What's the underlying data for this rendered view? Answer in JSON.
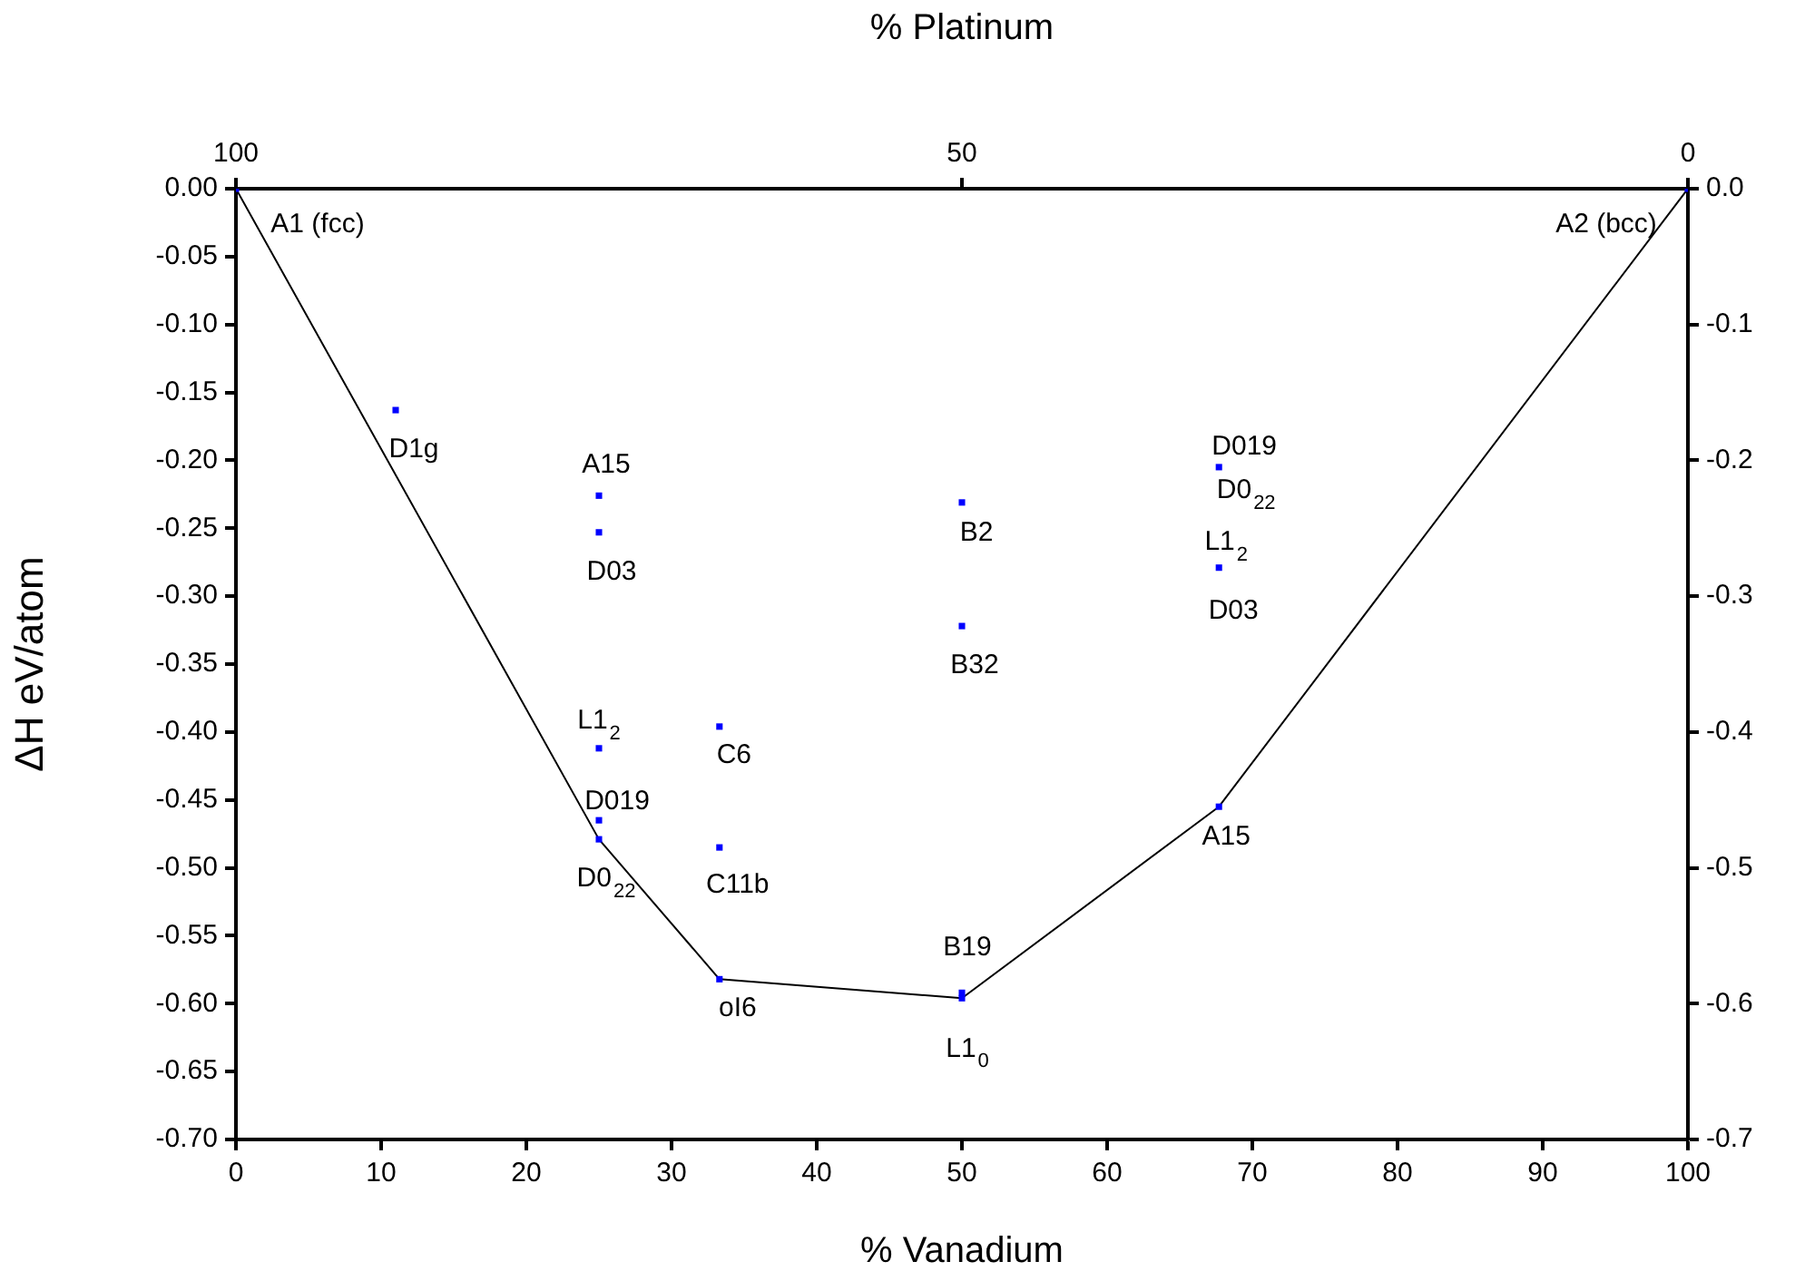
{
  "chart_data": {
    "type": "scatter",
    "xlabel": "% Vanadium",
    "ylabel": "ΔH eV/atom",
    "x2label": "% Platinum",
    "xlim": [
      0,
      100
    ],
    "xticks": [
      0,
      10,
      20,
      30,
      40,
      50,
      60,
      70,
      80,
      90,
      100
    ],
    "x2lim": [
      100,
      0
    ],
    "x2ticks": [
      100,
      50,
      0
    ],
    "ylim": [
      -0.7,
      0
    ],
    "yticks": [
      {
        "value": 0,
        "label": "0.00"
      },
      {
        "value": -0.05,
        "label": "-0.05"
      },
      {
        "value": -0.1,
        "label": "-0.10"
      },
      {
        "value": -0.15,
        "label": "-0.15"
      },
      {
        "value": -0.2,
        "label": "-0.20"
      },
      {
        "value": -0.25,
        "label": "-0.25"
      },
      {
        "value": -0.3,
        "label": "-0.30"
      },
      {
        "value": -0.35,
        "label": "-0.35"
      },
      {
        "value": -0.4,
        "label": "-0.40"
      },
      {
        "value": -0.45,
        "label": "-0.45"
      },
      {
        "value": -0.5,
        "label": "-0.50"
      },
      {
        "value": -0.55,
        "label": "-0.55"
      },
      {
        "value": -0.6,
        "label": "-0.60"
      },
      {
        "value": -0.65,
        "label": "-0.65"
      },
      {
        "value": -0.7,
        "label": "-0.70"
      }
    ],
    "y2lim": [
      -0.7,
      0
    ],
    "y2ticks": [
      {
        "value": 0,
        "label": "0.0"
      },
      -0.1,
      -0.2,
      -0.3,
      -0.4,
      -0.5,
      -0.6,
      -0.7
    ],
    "grid": false,
    "legend": false,
    "marker": "square",
    "series": [
      {
        "type": "scatter",
        "color": "#0000ff",
        "x": [
          0,
          11,
          25,
          25,
          25,
          25,
          25,
          33.3,
          33.3,
          33.3,
          50,
          50,
          50,
          50,
          67.7,
          67.7,
          67.7,
          100
        ],
        "values": [
          0,
          -0.163,
          -0.226,
          -0.253,
          -0.412,
          -0.465,
          -0.479,
          -0.396,
          -0.485,
          -0.582,
          -0.231,
          -0.322,
          -0.592,
          -0.596,
          -0.205,
          -0.279,
          -0.455,
          0
        ]
      },
      {
        "type": "line",
        "color": "#000000",
        "marker": "none",
        "x": [
          0,
          25,
          33.3,
          50,
          67.7,
          100
        ],
        "values": [
          0,
          -0.479,
          -0.582,
          -0.596,
          -0.455,
          0
        ]
      }
    ],
    "annotations": [
      {
        "text": "A1 (fcc)",
        "x": 0,
        "y": 0
      },
      {
        "text": "D1g",
        "x": 11,
        "y": -0.163
      },
      {
        "text": "A15",
        "x": 25,
        "y": -0.226
      },
      {
        "text": "D03",
        "x": 25,
        "y": -0.253
      },
      {
        "text": "L1$_{2}$",
        "x": 25,
        "y": -0.412
      },
      {
        "text": "D019",
        "x": 25,
        "y": -0.465
      },
      {
        "text": "D0$_{22}$",
        "x": 25,
        "y": -0.479
      },
      {
        "text": "C6",
        "x": 33.3,
        "y": -0.396
      },
      {
        "text": "C11b",
        "x": 33.3,
        "y": -0.485
      },
      {
        "text": "oI6",
        "x": 33.3,
        "y": -0.582
      },
      {
        "text": "B2",
        "x": 50,
        "y": -0.231
      },
      {
        "text": "B32",
        "x": 50,
        "y": -0.322
      },
      {
        "text": "B19",
        "x": 50,
        "y": -0.592
      },
      {
        "text": "L1$_{0}$",
        "x": 50,
        "y": -0.596
      },
      {
        "text": "D019",
        "x": 67.7,
        "y": -0.205
      },
      {
        "text": "D0$_{22}$",
        "x": 67.7,
        "y": -0.205
      },
      {
        "text": "L1$_{2}$",
        "x": 67.7,
        "y": -0.279
      },
      {
        "text": "D03",
        "x": 67.7,
        "y": -0.279
      },
      {
        "text": "A15",
        "x": 67.7,
        "y": -0.455
      },
      {
        "text": "A2 (bcc)",
        "x": 100,
        "y": 0
      }
    ]
  }
}
